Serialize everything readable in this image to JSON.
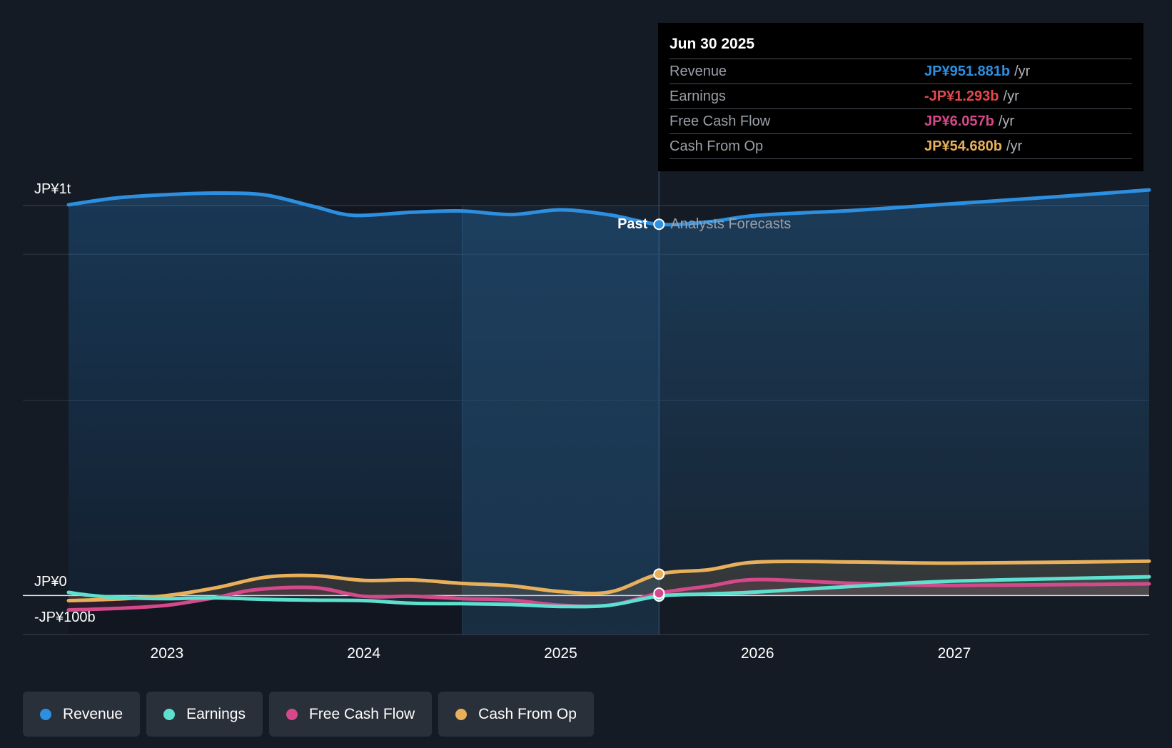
{
  "chart_data": {
    "type": "line",
    "x_ticks": [
      "2023",
      "2024",
      "2025",
      "2026",
      "2027"
    ],
    "x_range": [
      2022.5,
      2027.99
    ],
    "y_range": [
      -100,
      1000
    ],
    "y_unit": "JP¥ billions",
    "y_labels": {
      "top": "JP¥1t",
      "zero": "JP¥0",
      "bottom": "-JP¥100b"
    },
    "region_labels": {
      "past": "Past",
      "forecast": "Analysts Forecasts"
    },
    "highlight_start": 2024.5,
    "divider_x": 2025.5,
    "series": [
      {
        "name": "Revenue",
        "color": "#2d8fe0",
        "points": [
          [
            2022.5,
            1002
          ],
          [
            2022.75,
            1020
          ],
          [
            2023.0,
            1028
          ],
          [
            2023.25,
            1032
          ],
          [
            2023.5,
            1027
          ],
          [
            2023.75,
            997
          ],
          [
            2023.95,
            975
          ],
          [
            2024.25,
            983
          ],
          [
            2024.5,
            986
          ],
          [
            2024.75,
            977
          ],
          [
            2025.0,
            989
          ],
          [
            2025.25,
            976
          ],
          [
            2025.5,
            952
          ],
          [
            2025.75,
            958
          ],
          [
            2026.0,
            975
          ],
          [
            2026.5,
            988
          ],
          [
            2027.0,
            1005
          ],
          [
            2027.5,
            1022
          ],
          [
            2027.99,
            1040
          ]
        ]
      },
      {
        "name": "Earnings",
        "color": "#5ee0d0",
        "points": [
          [
            2022.5,
            8
          ],
          [
            2022.6,
            1
          ],
          [
            2022.75,
            -5
          ],
          [
            2023.0,
            -8
          ],
          [
            2023.25,
            -6
          ],
          [
            2023.5,
            -10
          ],
          [
            2023.75,
            -12
          ],
          [
            2024.0,
            -13
          ],
          [
            2024.25,
            -20
          ],
          [
            2024.5,
            -21
          ],
          [
            2024.75,
            -23
          ],
          [
            2025.0,
            -28
          ],
          [
            2025.25,
            -25
          ],
          [
            2025.5,
            -1.3
          ],
          [
            2025.75,
            4
          ],
          [
            2026.0,
            9
          ],
          [
            2026.5,
            24
          ],
          [
            2027.0,
            37
          ],
          [
            2027.99,
            48
          ]
        ]
      },
      {
        "name": "Free Cash Flow",
        "color": "#d4498a",
        "points": [
          [
            2022.5,
            -37
          ],
          [
            2022.75,
            -33
          ],
          [
            2023.0,
            -25
          ],
          [
            2023.25,
            -5
          ],
          [
            2023.45,
            15
          ],
          [
            2023.75,
            20
          ],
          [
            2024.0,
            -2
          ],
          [
            2024.25,
            -2
          ],
          [
            2024.5,
            -8
          ],
          [
            2024.75,
            -12
          ],
          [
            2025.0,
            -25
          ],
          [
            2025.25,
            -25
          ],
          [
            2025.5,
            6
          ],
          [
            2025.75,
            24
          ],
          [
            2026.0,
            41
          ],
          [
            2026.5,
            31
          ],
          [
            2027.0,
            26
          ],
          [
            2027.99,
            30
          ]
        ]
      },
      {
        "name": "Cash From Op",
        "color": "#e8b05a",
        "points": [
          [
            2022.5,
            -13
          ],
          [
            2022.75,
            -9
          ],
          [
            2023.0,
            0
          ],
          [
            2023.25,
            20
          ],
          [
            2023.5,
            47
          ],
          [
            2023.75,
            51
          ],
          [
            2024.0,
            39
          ],
          [
            2024.25,
            40
          ],
          [
            2024.5,
            31
          ],
          [
            2024.75,
            25
          ],
          [
            2025.0,
            10
          ],
          [
            2025.25,
            9
          ],
          [
            2025.5,
            55
          ],
          [
            2025.75,
            66
          ],
          [
            2026.0,
            86
          ],
          [
            2026.5,
            86
          ],
          [
            2027.0,
            83
          ],
          [
            2027.99,
            88
          ]
        ]
      }
    ]
  },
  "tooltip": {
    "date": "Jun 30 2025",
    "rows": [
      {
        "label": "Revenue",
        "value": "JP¥951.881b",
        "unit": "/yr",
        "color": "#2d8fe0"
      },
      {
        "label": "Earnings",
        "value": "-JP¥1.293b",
        "unit": "/yr",
        "color": "#e5484d"
      },
      {
        "label": "Free Cash Flow",
        "value": "JP¥6.057b",
        "unit": "/yr",
        "color": "#d4498a"
      },
      {
        "label": "Cash From Op",
        "value": "JP¥54.680b",
        "unit": "/yr",
        "color": "#e8b05a"
      }
    ]
  },
  "legend": [
    {
      "label": "Revenue",
      "color": "#2d8fe0"
    },
    {
      "label": "Earnings",
      "color": "#5ee0d0"
    },
    {
      "label": "Free Cash Flow",
      "color": "#d4498a"
    },
    {
      "label": "Cash From Op",
      "color": "#e8b05a"
    }
  ]
}
